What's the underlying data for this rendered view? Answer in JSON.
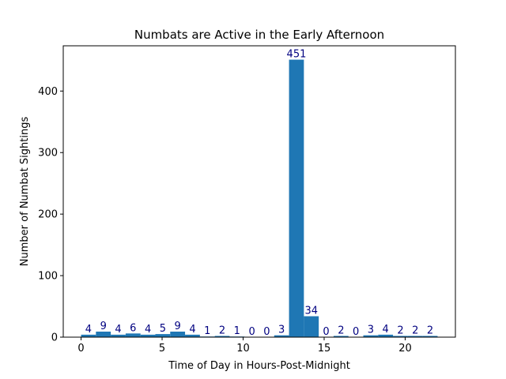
{
  "chart_data": {
    "type": "bar",
    "title": "Numbats are Active in the Early Afternoon",
    "xlabel": "Time of Day in Hours-Post-Midnight",
    "ylabel": "Number of Numbat Sightings",
    "bin_edges": [
      0,
      0.9167,
      1.8333,
      2.75,
      3.6667,
      4.5833,
      5.5,
      6.4167,
      7.3333,
      8.25,
      9.1667,
      10.0833,
      11,
      11.9167,
      12.8333,
      13.75,
      14.6667,
      15.5833,
      16.5,
      17.4167,
      18.3333,
      19.25,
      20.1667,
      21.0833,
      22
    ],
    "values": [
      4,
      9,
      4,
      6,
      4,
      5,
      9,
      4,
      1,
      2,
      1,
      0,
      0,
      3,
      451,
      34,
      0,
      2,
      0,
      3,
      4,
      2,
      2,
      2
    ],
    "xlim": [
      -1.1,
      23.1
    ],
    "ylim": [
      0,
      473.55
    ],
    "xticks": [
      0,
      5,
      10,
      15,
      20
    ],
    "yticks": [
      0,
      100,
      200,
      300,
      400
    ],
    "grid": false,
    "bar_color": "#1f77b4",
    "label_color": "#000080"
  }
}
